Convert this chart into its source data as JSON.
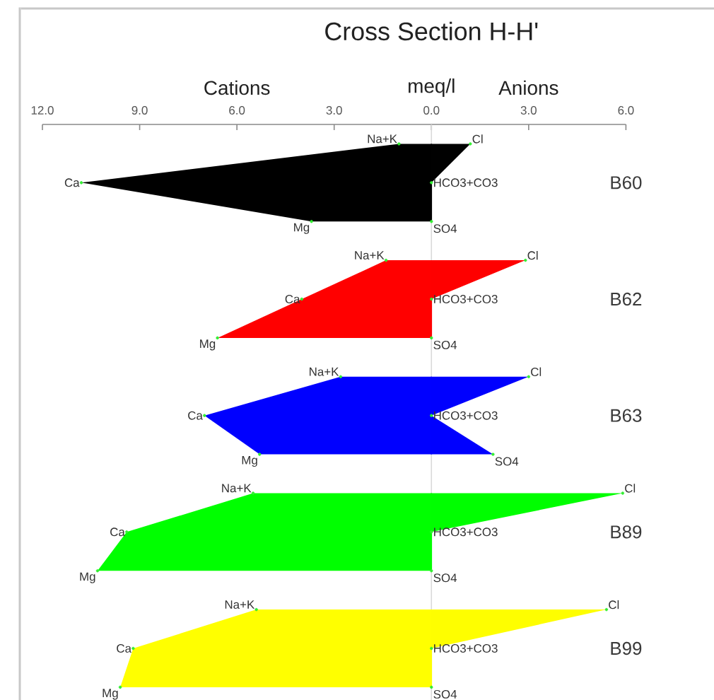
{
  "chart_data": {
    "type": "area",
    "orientation": "horizontal",
    "title": "Cross Section H-H'",
    "xlabel": "meq/l",
    "annotations": [
      "Cations",
      "Anions"
    ],
    "xlim": [
      -12,
      6
    ],
    "xticks": [
      {
        "value": -12,
        "label": "12.0"
      },
      {
        "value": -9,
        "label": "9.0"
      },
      {
        "value": -6,
        "label": "6.0"
      },
      {
        "value": -3,
        "label": "3.0"
      },
      {
        "value": 0,
        "label": "0.0"
      },
      {
        "value": 3,
        "label": "3.0"
      },
      {
        "value": 6,
        "label": "6.0"
      }
    ],
    "categories": [
      null,
      null,
      null,
      null,
      null,
      null,
      null,
      null,
      null,
      null,
      null,
      null,
      null,
      null,
      null
    ],
    "marker": "circle",
    "ref_lines": [
      {
        "axis": "x",
        "value": 0,
        "color": "#d9d9d9"
      }
    ],
    "series": [
      {
        "color": "#000000",
        "values": [
          -1.0,
          -10.8,
          -3.7,
          null,
          null,
          null,
          null,
          null,
          null,
          null,
          null,
          null,
          null,
          null,
          null
        ],
        "value_labels": [
          "Na+K",
          "Ca",
          "Mg",
          null,
          null,
          null,
          null,
          null,
          null,
          null,
          null,
          null,
          null,
          null,
          null
        ]
      },
      {
        "name": "B60",
        "color": "#010101",
        "values": [
          1.2,
          0,
          0,
          null,
          null,
          null,
          null,
          null,
          null,
          null,
          null,
          null,
          null,
          null,
          null
        ],
        "value_labels": [
          "Cl",
          "HCO3+CO3",
          "SO4",
          null,
          null,
          null,
          null,
          null,
          null,
          null,
          null,
          null,
          null,
          null,
          null
        ]
      },
      {
        "color": "#ff0000",
        "values": [
          null,
          null,
          null,
          -1.4,
          -4.0,
          -6.6,
          null,
          null,
          null,
          null,
          null,
          null,
          null,
          null,
          null
        ],
        "value_labels": [
          null,
          null,
          null,
          "Na+K",
          "Ca",
          "Mg",
          null,
          null,
          null,
          null,
          null,
          null,
          null,
          null,
          null
        ]
      },
      {
        "name": "B62",
        "color": "#fe0000",
        "values": [
          null,
          null,
          null,
          2.9,
          0,
          0,
          null,
          null,
          null,
          null,
          null,
          null,
          null,
          null,
          null
        ],
        "value_labels": [
          null,
          null,
          null,
          "Cl",
          "HCO3+CO3",
          "SO4",
          null,
          null,
          null,
          null,
          null,
          null,
          null,
          null,
          null
        ]
      },
      {
        "color": "#0000ff",
        "values": [
          null,
          null,
          null,
          null,
          null,
          null,
          -2.8,
          -7.0,
          -5.3,
          null,
          null,
          null,
          null,
          null,
          null
        ],
        "value_labels": [
          null,
          null,
          null,
          null,
          null,
          null,
          "Na+K",
          "Ca",
          "Mg",
          null,
          null,
          null,
          null,
          null,
          null
        ]
      },
      {
        "name": "B63",
        "color": "#0000fe",
        "values": [
          null,
          null,
          null,
          null,
          null,
          null,
          3.0,
          0,
          1.9,
          null,
          null,
          null,
          null,
          null,
          null
        ],
        "value_labels": [
          null,
          null,
          null,
          null,
          null,
          null,
          "Cl",
          "HCO3+CO3",
          "SO4",
          null,
          null,
          null,
          null,
          null,
          null
        ]
      },
      {
        "color": "#00ff00",
        "values": [
          null,
          null,
          null,
          null,
          null,
          null,
          null,
          null,
          null,
          -5.5,
          -9.4,
          -10.3,
          null,
          null,
          null
        ],
        "value_labels": [
          null,
          null,
          null,
          null,
          null,
          null,
          null,
          null,
          null,
          "Na+K",
          "Ca",
          "Mg",
          null,
          null,
          null
        ]
      },
      {
        "name": "B89",
        "color": "#00fe00",
        "values": [
          null,
          null,
          null,
          null,
          null,
          null,
          null,
          null,
          null,
          5.9,
          0,
          0,
          null,
          null,
          null
        ],
        "value_labels": [
          null,
          null,
          null,
          null,
          null,
          null,
          null,
          null,
          null,
          "Cl",
          "HCO3+CO3",
          "SO4",
          null,
          null,
          null
        ]
      },
      {
        "color": "#ffff00",
        "values": [
          null,
          null,
          null,
          null,
          null,
          null,
          null,
          null,
          null,
          null,
          null,
          null,
          -5.4,
          -9.2,
          -9.6
        ],
        "value_labels": [
          null,
          null,
          null,
          null,
          null,
          null,
          null,
          null,
          null,
          null,
          null,
          null,
          "Na+K",
          "Ca",
          "Mg"
        ]
      },
      {
        "name": "B99",
        "color": "#fefe00",
        "values": [
          null,
          null,
          null,
          null,
          null,
          null,
          null,
          null,
          null,
          null,
          null,
          null,
          5.4,
          0,
          0
        ],
        "value_labels": [
          null,
          null,
          null,
          null,
          null,
          null,
          null,
          null,
          null,
          null,
          null,
          null,
          "Cl",
          "HCO3+CO3",
          "SO4"
        ]
      }
    ]
  }
}
